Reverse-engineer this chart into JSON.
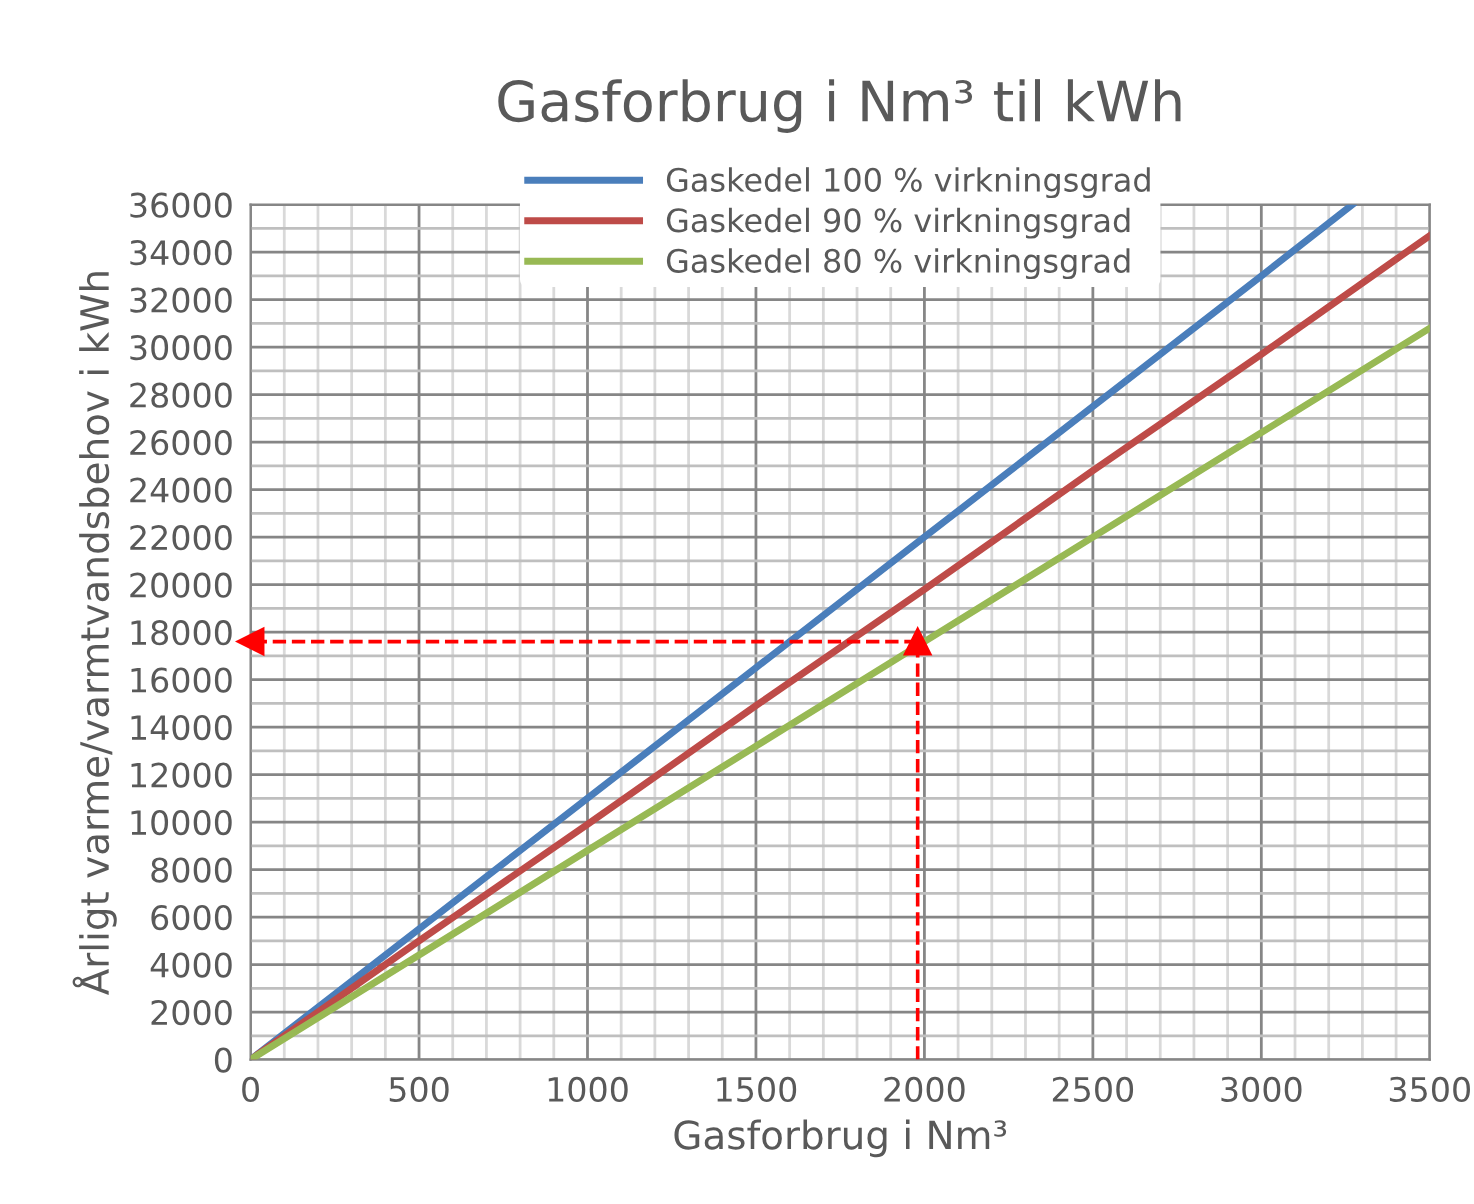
{
  "chart_data": {
    "type": "line",
    "title": "Gasforbrug i Nm³ til kWh",
    "xlabel": "Gasforbrug i Nm³",
    "ylabel": "Årligt varme/varmtvandsbehov i kWh",
    "series": [
      {
        "name": "Gaskedel 100 % virkningsgrad",
        "color": "#4a7ebb",
        "x": [
          0,
          500,
          1000,
          1500,
          2000,
          2500,
          3000,
          3270
        ],
        "values": [
          0,
          5500,
          11000,
          16500,
          22000,
          27500,
          33000,
          36000
        ]
      },
      {
        "name": "Gaskedel 90 % virkningsgrad",
        "color": "#be4b48",
        "x": [
          0,
          500,
          1000,
          1500,
          2000,
          2500,
          3000,
          3500
        ],
        "values": [
          0,
          5000,
          9900,
          14900,
          19800,
          24800,
          29700,
          34700
        ]
      },
      {
        "name": "Gaskedel 80 % virkningsgrad",
        "color": "#98b954",
        "x": [
          0,
          500,
          1000,
          1500,
          2000,
          2500,
          3000,
          3500
        ],
        "values": [
          0,
          4400,
          8800,
          13200,
          17600,
          22000,
          26400,
          30800
        ]
      }
    ],
    "xlim": [
      0,
      3500
    ],
    "xticks": [
      0,
      500,
      1000,
      1500,
      2000,
      2500,
      3000,
      3500
    ],
    "ylim": [
      0,
      36000
    ],
    "yticks": [
      0,
      2000,
      4000,
      6000,
      8000,
      10000,
      12000,
      14000,
      16000,
      18000,
      20000,
      22000,
      24000,
      26000,
      28000,
      30000,
      32000,
      34000,
      36000
    ],
    "grid": true,
    "legend": "top",
    "marker": "none",
    "line_style": "solid",
    "ref_lines": [
      {
        "axis": "x",
        "value": 1980,
        "color": "#ff0000",
        "line_style": "dashed"
      },
      {
        "axis": "y",
        "value": 17600,
        "color": "#ff0000",
        "line_style": "dashed"
      }
    ]
  }
}
